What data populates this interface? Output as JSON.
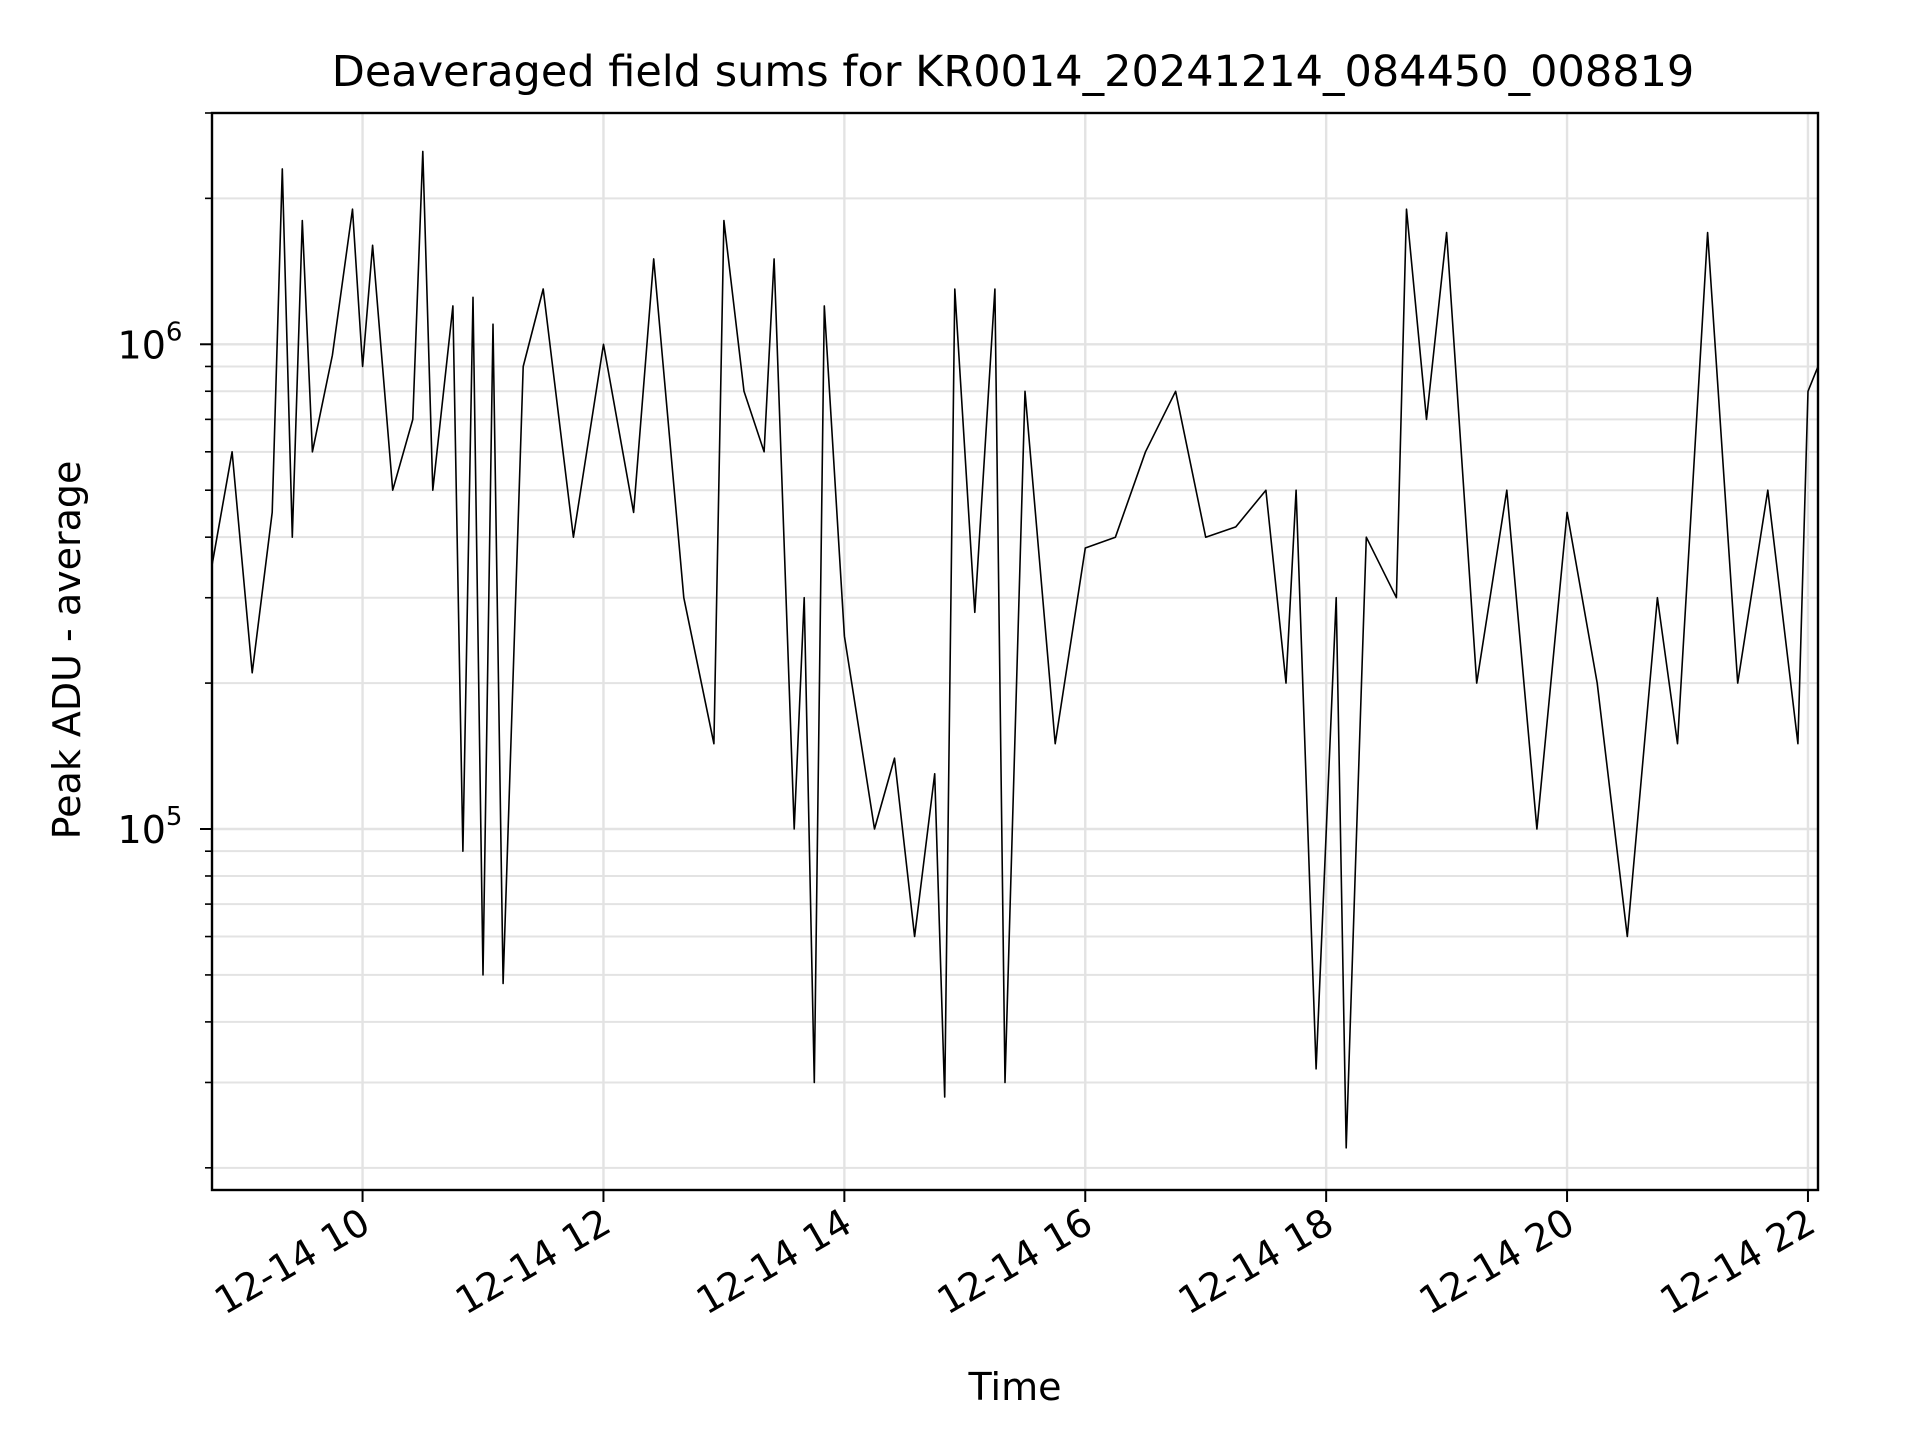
{
  "chart_data": {
    "type": "line",
    "title": "Deaveraged field sums for KR0014_20241214_084450_008819",
    "xlabel": "Time",
    "ylabel": "Peak ADU - average",
    "y_scale": "log",
    "ylim": [
      18000,
      3000000
    ],
    "xlim": [
      "12-14 08:45",
      "12-14 22:05"
    ],
    "x_ticks": [
      "12-14 10",
      "12-14 12",
      "12-14 14",
      "12-14 16",
      "12-14 18",
      "12-14 20",
      "12-14 22"
    ],
    "y_major_ticks": [
      {
        "base": "10",
        "exp": "5",
        "value": 100000
      },
      {
        "base": "10",
        "exp": "6",
        "value": 1000000
      }
    ],
    "grid": true,
    "legend": "none",
    "line_color": "#000000",
    "series": [
      {
        "x": [
          "12-14 08:45",
          "12-14 08:55",
          "12-14 09:05",
          "12-14 09:15",
          "12-14 09:20",
          "12-14 09:25",
          "12-14 09:30",
          "12-14 09:35",
          "12-14 09:45",
          "12-14 09:55",
          "12-14 10:00",
          "12-14 10:05",
          "12-14 10:15",
          "12-14 10:25",
          "12-14 10:30",
          "12-14 10:35",
          "12-14 10:45",
          "12-14 10:50",
          "12-14 10:55",
          "12-14 11:00",
          "12-14 11:05",
          "12-14 11:10",
          "12-14 11:20",
          "12-14 11:30",
          "12-14 11:45",
          "12-14 12:00",
          "12-14 12:15",
          "12-14 12:25",
          "12-14 12:40",
          "12-14 12:55",
          "12-14 13:00",
          "12-14 13:10",
          "12-14 13:20",
          "12-14 13:25",
          "12-14 13:35",
          "12-14 13:40",
          "12-14 13:45",
          "12-14 13:50",
          "12-14 14:00",
          "12-14 14:15",
          "12-14 14:25",
          "12-14 14:35",
          "12-14 14:45",
          "12-14 14:50",
          "12-14 14:55",
          "12-14 15:05",
          "12-14 15:15",
          "12-14 15:20",
          "12-14 15:30",
          "12-14 15:45",
          "12-14 16:00",
          "12-14 16:15",
          "12-14 16:30",
          "12-14 16:45",
          "12-14 17:00",
          "12-14 17:15",
          "12-14 17:30",
          "12-14 17:40",
          "12-14 17:45",
          "12-14 17:55",
          "12-14 18:05",
          "12-14 18:10",
          "12-14 18:20",
          "12-14 18:35",
          "12-14 18:40",
          "12-14 18:50",
          "12-14 19:00",
          "12-14 19:15",
          "12-14 19:30",
          "12-14 19:45",
          "12-14 20:00",
          "12-14 20:15",
          "12-14 20:30",
          "12-14 20:45",
          "12-14 20:55",
          "12-14 21:10",
          "12-14 21:25",
          "12-14 21:40",
          "12-14 21:55",
          "12-14 22:00",
          "12-14 22:05"
        ],
        "values": [
          350000,
          600000,
          210000,
          450000,
          2300000,
          400000,
          1800000,
          600000,
          950000,
          1900000,
          900000,
          1600000,
          500000,
          700000,
          2500000,
          500000,
          1200000,
          90000,
          1250000,
          50000,
          1100000,
          48000,
          900000,
          1300000,
          400000,
          1000000,
          450000,
          1500000,
          300000,
          150000,
          1800000,
          800000,
          600000,
          1500000,
          100000,
          300000,
          30000,
          1200000,
          250000,
          100000,
          140000,
          60000,
          130000,
          28000,
          1300000,
          280000,
          1300000,
          30000,
          800000,
          150000,
          380000,
          400000,
          600000,
          800000,
          400000,
          420000,
          500000,
          200000,
          500000,
          32000,
          300000,
          22000,
          400000,
          300000,
          1900000,
          700000,
          1700000,
          200000,
          500000,
          100000,
          450000,
          200000,
          60000,
          300000,
          150000,
          1700000,
          200000,
          500000,
          150000,
          800000,
          900000
        ]
      }
    ]
  }
}
